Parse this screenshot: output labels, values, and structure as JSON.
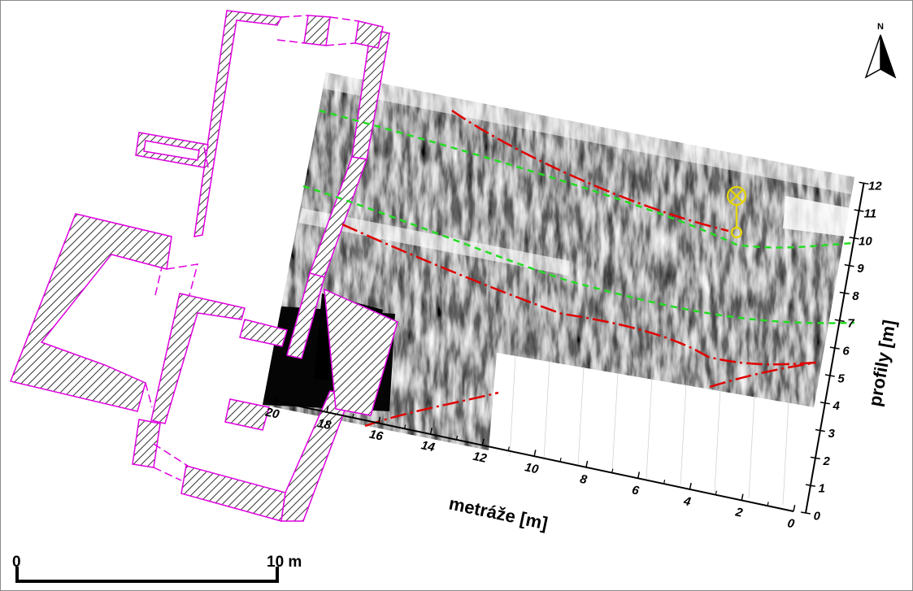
{
  "north_arrow": {
    "label": "N",
    "icon": "north-arrow-icon"
  },
  "scale_bar": {
    "start_label": "0",
    "end_label": "10 m"
  },
  "axes": {
    "x": {
      "title": "metráže [m]",
      "ticks": [
        "0",
        "2",
        "4",
        "6",
        "8",
        "10",
        "12",
        "14",
        "16",
        "18",
        "20"
      ]
    },
    "y": {
      "title": "profily [m]",
      "ticks": [
        "0",
        "1",
        "2",
        "3",
        "4",
        "5",
        "6",
        "7",
        "8",
        "9",
        "10",
        "11",
        "12"
      ]
    }
  },
  "colors": {
    "wall_outline": "#e000e0",
    "wall_hatch": "#333333",
    "anomaly_red": "#e00000",
    "anomaly_green": "#22dd22",
    "marker_yellow": "#e6d600",
    "gpr_dark": "#0a0a0a",
    "gpr_light": "#f2f2f2"
  },
  "layers": [
    {
      "name": "building-walls",
      "style": "magenta outline with diagonal hatching"
    },
    {
      "name": "gpr-radargram",
      "style": "grayscale"
    },
    {
      "name": "red-dash-dot-lines",
      "style": "red dash-dot"
    },
    {
      "name": "green-dashed-lines",
      "style": "green dashed"
    },
    {
      "name": "probe-marker",
      "icon": "crossed-circle-marker-icon"
    }
  ]
}
